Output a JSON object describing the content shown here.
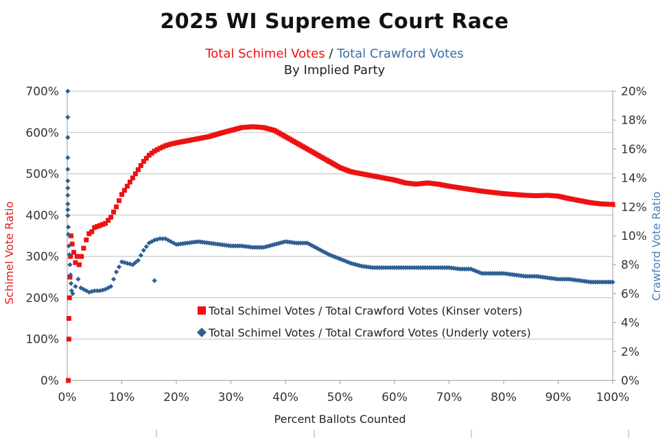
{
  "chart_data": {
    "type": "scatter",
    "title": "2025 WI Supreme Court Race",
    "subtitle": {
      "part_a": "Total Schimel Votes",
      "separator": " / ",
      "part_b": "Total Crawford Votes",
      "line2": "By Implied Party"
    },
    "xlabel": "Percent Ballots Counted",
    "ylabel_left": "Schimel Vote Ratio",
    "ylabel_right": "Crawford Vote Ratio",
    "xlim": [
      0,
      100
    ],
    "ylim_left": [
      0,
      700
    ],
    "ylim_right": [
      0,
      20
    ],
    "x_ticks": [
      "0%",
      "10%",
      "20%",
      "30%",
      "40%",
      "50%",
      "60%",
      "70%",
      "80%",
      "90%",
      "100%"
    ],
    "y_left_ticks": [
      "0%",
      "100%",
      "200%",
      "300%",
      "400%",
      "500%",
      "600%",
      "700%"
    ],
    "y_right_ticks": [
      "0%",
      "2%",
      "4%",
      "6%",
      "8%",
      "10%",
      "12%",
      "14%",
      "16%",
      "18%",
      "20%"
    ],
    "grid": true,
    "legend_position": "center",
    "colors": {
      "red": "#ee1111",
      "blue": "#2e5f94",
      "axis_red": "#e02020",
      "axis_blue": "#4a7fb8"
    },
    "series": [
      {
        "name": "Total Schimel Votes / Total Crawford Votes (Kinser voters)",
        "axis": "left",
        "marker": "square",
        "color": "#ee1111",
        "points": [
          [
            0.2,
            0
          ],
          [
            0.3,
            100
          ],
          [
            0.3,
            150
          ],
          [
            0.4,
            200
          ],
          [
            0.5,
            250
          ],
          [
            0.6,
            300
          ],
          [
            0.7,
            350
          ],
          [
            0.9,
            330
          ],
          [
            1.2,
            310
          ],
          [
            1.5,
            285
          ],
          [
            1.8,
            300
          ],
          [
            2.2,
            280
          ],
          [
            2.6,
            300
          ],
          [
            3.0,
            320
          ],
          [
            3.5,
            340
          ],
          [
            4,
            355
          ],
          [
            4.5,
            360
          ],
          [
            5,
            370
          ],
          [
            6,
            375
          ],
          [
            7,
            380
          ],
          [
            8,
            395
          ],
          [
            9,
            420
          ],
          [
            10,
            450
          ],
          [
            11,
            470
          ],
          [
            12,
            490
          ],
          [
            13,
            510
          ],
          [
            14,
            530
          ],
          [
            15,
            545
          ],
          [
            16,
            555
          ],
          [
            17,
            562
          ],
          [
            18,
            568
          ],
          [
            19,
            572
          ],
          [
            20,
            575
          ],
          [
            22,
            580
          ],
          [
            24,
            585
          ],
          [
            26,
            590
          ],
          [
            28,
            598
          ],
          [
            30,
            605
          ],
          [
            32,
            612
          ],
          [
            34,
            614
          ],
          [
            36,
            612
          ],
          [
            38,
            605
          ],
          [
            40,
            590
          ],
          [
            42,
            575
          ],
          [
            44,
            560
          ],
          [
            46,
            545
          ],
          [
            48,
            530
          ],
          [
            50,
            515
          ],
          [
            52,
            505
          ],
          [
            54,
            500
          ],
          [
            56,
            495
          ],
          [
            58,
            490
          ],
          [
            60,
            485
          ],
          [
            62,
            478
          ],
          [
            64,
            475
          ],
          [
            66,
            478
          ],
          [
            68,
            475
          ],
          [
            70,
            470
          ],
          [
            72,
            466
          ],
          [
            74,
            462
          ],
          [
            76,
            458
          ],
          [
            78,
            455
          ],
          [
            80,
            452
          ],
          [
            82,
            450
          ],
          [
            84,
            448
          ],
          [
            86,
            447
          ],
          [
            88,
            448
          ],
          [
            90,
            446
          ],
          [
            92,
            440
          ],
          [
            94,
            435
          ],
          [
            96,
            430
          ],
          [
            98,
            427
          ],
          [
            100,
            426
          ]
        ]
      },
      {
        "name": "Total Schimel Votes / Total Crawford Votes (Underly voters)",
        "axis": "right",
        "marker": "diamond",
        "color": "#2e5f94",
        "points": [
          [
            0.1,
            20
          ],
          [
            0.1,
            18.2
          ],
          [
            0.1,
            16.8
          ],
          [
            0.1,
            15.4
          ],
          [
            0.1,
            14.6
          ],
          [
            0.1,
            13.8
          ],
          [
            0.1,
            13.3
          ],
          [
            0.1,
            12.8
          ],
          [
            0.1,
            12.2
          ],
          [
            0.1,
            11.8
          ],
          [
            0.1,
            11.4
          ],
          [
            0.2,
            10.6
          ],
          [
            0.2,
            10.1
          ],
          [
            0.3,
            9.3
          ],
          [
            0.4,
            8.7
          ],
          [
            0.5,
            8.0
          ],
          [
            0.6,
            7.3
          ],
          [
            0.7,
            6.7
          ],
          [
            0.8,
            6.2
          ],
          [
            1.0,
            6.0
          ],
          [
            1.5,
            6.5
          ],
          [
            2.0,
            7.0
          ],
          [
            2.5,
            6.4
          ],
          [
            3.0,
            6.3
          ],
          [
            3.5,
            6.2
          ],
          [
            4,
            6.1
          ],
          [
            5,
            6.2
          ],
          [
            6,
            6.2
          ],
          [
            7,
            6.3
          ],
          [
            8,
            6.5
          ],
          [
            9,
            7.5
          ],
          [
            10,
            8.2
          ],
          [
            11,
            8.1
          ],
          [
            12,
            8.0
          ],
          [
            13,
            8.3
          ],
          [
            14,
            9.0
          ],
          [
            15,
            9.5
          ],
          [
            16,
            9.7
          ],
          [
            17,
            9.8
          ],
          [
            18,
            9.8
          ],
          [
            19,
            9.6
          ],
          [
            20,
            9.4
          ],
          [
            22,
            9.5
          ],
          [
            24,
            9.6
          ],
          [
            26,
            9.5
          ],
          [
            28,
            9.4
          ],
          [
            30,
            9.3
          ],
          [
            32,
            9.3
          ],
          [
            34,
            9.2
          ],
          [
            36,
            9.2
          ],
          [
            38,
            9.4
          ],
          [
            40,
            9.6
          ],
          [
            42,
            9.5
          ],
          [
            44,
            9.5
          ],
          [
            46,
            9.1
          ],
          [
            48,
            8.7
          ],
          [
            50,
            8.4
          ],
          [
            52,
            8.1
          ],
          [
            54,
            7.9
          ],
          [
            56,
            7.8
          ],
          [
            58,
            7.8
          ],
          [
            60,
            7.8
          ],
          [
            62,
            7.8
          ],
          [
            64,
            7.8
          ],
          [
            66,
            7.8
          ],
          [
            68,
            7.8
          ],
          [
            70,
            7.8
          ],
          [
            72,
            7.7
          ],
          [
            74,
            7.7
          ],
          [
            76,
            7.4
          ],
          [
            78,
            7.4
          ],
          [
            80,
            7.4
          ],
          [
            82,
            7.3
          ],
          [
            84,
            7.2
          ],
          [
            86,
            7.2
          ],
          [
            88,
            7.1
          ],
          [
            90,
            7.0
          ],
          [
            92,
            7.0
          ],
          [
            94,
            6.9
          ],
          [
            96,
            6.8
          ],
          [
            98,
            6.8
          ],
          [
            100,
            6.8
          ],
          [
            16,
            6.9
          ]
        ]
      }
    ]
  }
}
